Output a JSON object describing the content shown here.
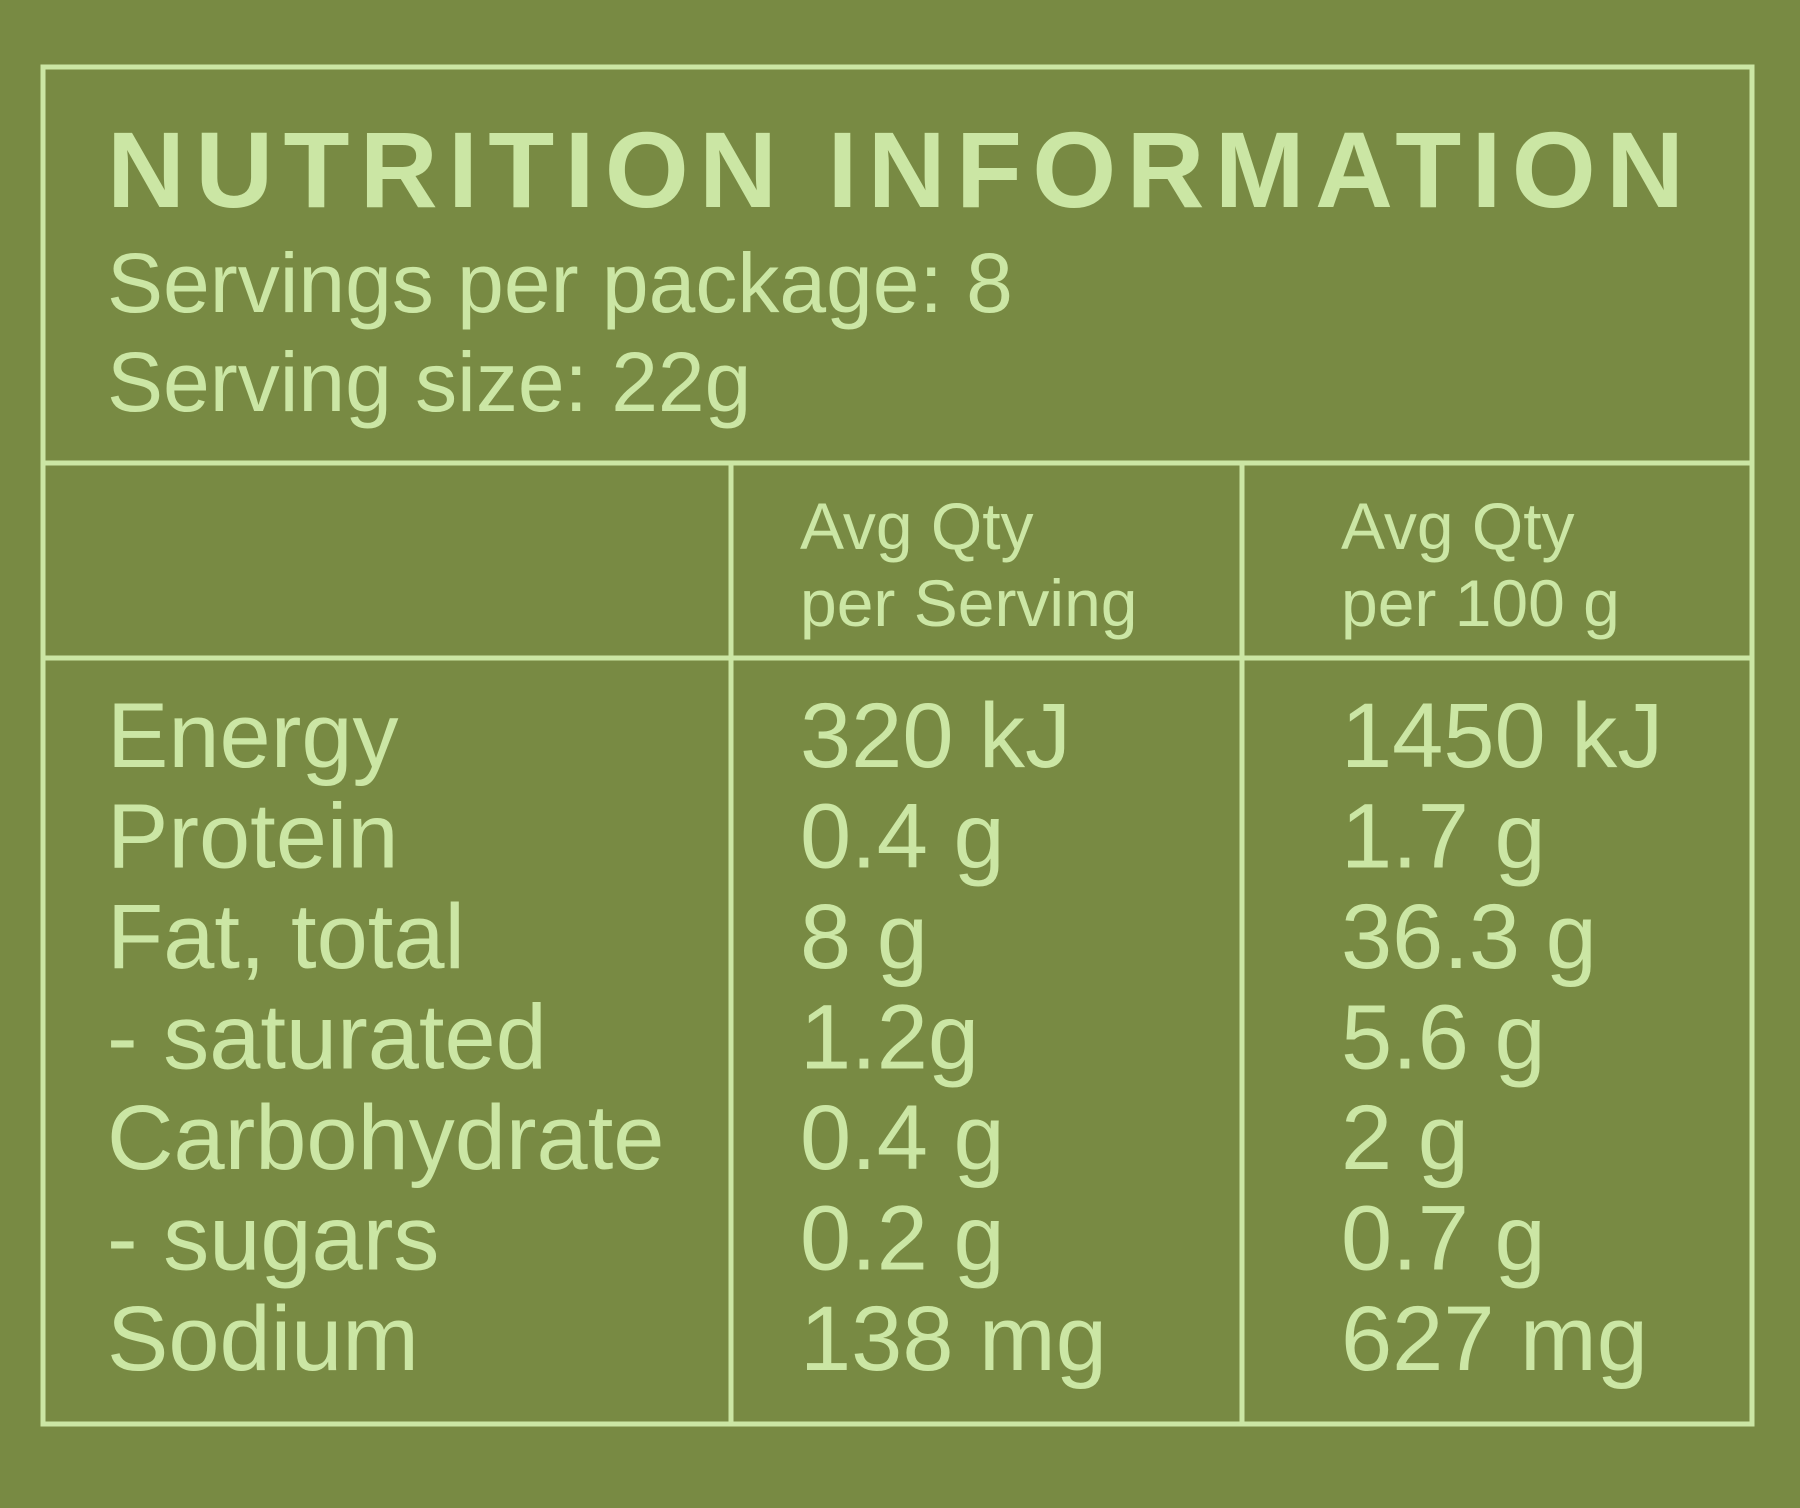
{
  "header": {
    "title": "NUTRITION INFORMATION",
    "servings": "Servings per package: 8",
    "serving_size": "Serving size: 22g"
  },
  "table": {
    "columns": [
      [
        "Avg Qty",
        "per Serving"
      ],
      [
        "Avg Qty",
        "per 100 g"
      ]
    ],
    "rows": [
      [
        "Energy",
        "320 kJ",
        "1450 kJ"
      ],
      [
        "Protein",
        "0.4 g",
        "1.7 g"
      ],
      [
        "Fat, total",
        "8 g",
        "36.3 g"
      ],
      [
        "- saturated",
        "1.2g",
        "5.6 g"
      ],
      [
        "Carbohydrate",
        "0.4 g",
        "2 g"
      ],
      [
        "- sugars",
        "0.2 g",
        "0.7 g"
      ],
      [
        "Sodium",
        "138 mg",
        "627 mg"
      ]
    ]
  }
}
